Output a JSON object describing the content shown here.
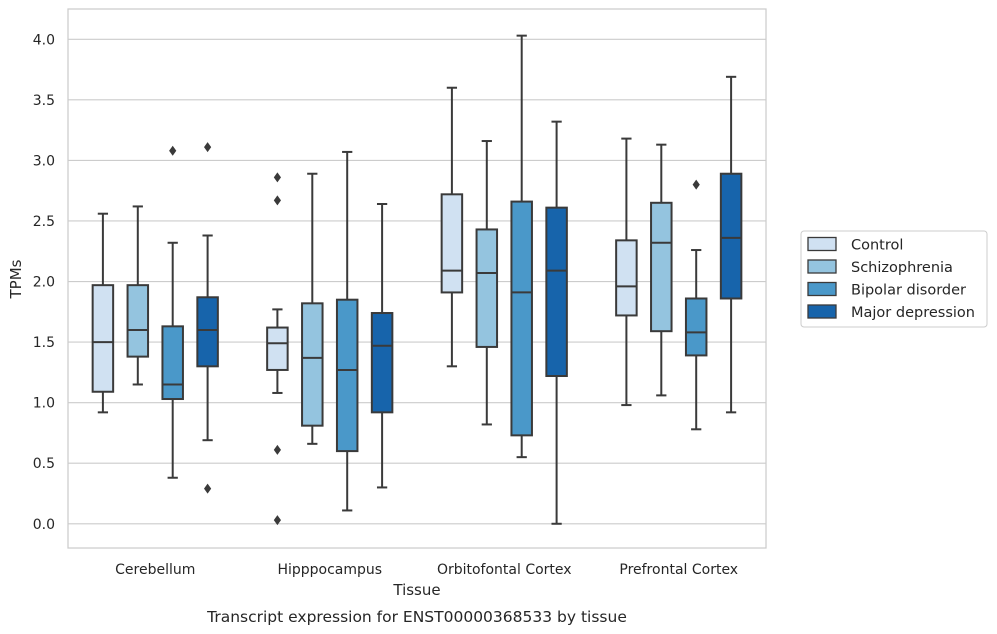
{
  "caption": "Transcript expression for ENST00000368533 by tissue",
  "chart_data": {
    "type": "box",
    "xlabel": "Tissue",
    "ylabel": "TPMs",
    "ylim": [
      -0.2,
      4.25
    ],
    "yticks": [
      "0.0",
      "0.5",
      "1.0",
      "1.5",
      "2.0",
      "2.5",
      "3.0",
      "3.5",
      "4.0"
    ],
    "grid": "horizontal",
    "legend_position": "right",
    "categories": [
      "Cerebellum",
      "Hipppocampus",
      "Orbitofontal Cortex",
      "Prefrontal Cortex"
    ],
    "series": [
      {
        "name": "Control",
        "color": "#d0e1f2",
        "boxes": [
          {
            "whisker_low": 0.92,
            "q1": 1.09,
            "median": 1.5,
            "q3": 1.97,
            "whisker_high": 2.56,
            "outliers": []
          },
          {
            "whisker_low": 1.08,
            "q1": 1.27,
            "median": 1.49,
            "q3": 1.62,
            "whisker_high": 1.77,
            "outliers": [
              2.86,
              2.67,
              0.61,
              0.03
            ]
          },
          {
            "whisker_low": 1.3,
            "q1": 1.91,
            "median": 2.09,
            "q3": 2.72,
            "whisker_high": 3.6,
            "outliers": []
          },
          {
            "whisker_low": 0.98,
            "q1": 1.72,
            "median": 1.96,
            "q3": 2.34,
            "whisker_high": 3.18,
            "outliers": []
          }
        ]
      },
      {
        "name": "Schizophrenia",
        "color": "#94c4df",
        "boxes": [
          {
            "whisker_low": 1.15,
            "q1": 1.38,
            "median": 1.6,
            "q3": 1.97,
            "whisker_high": 2.62,
            "outliers": []
          },
          {
            "whisker_low": 0.66,
            "q1": 0.81,
            "median": 1.37,
            "q3": 1.82,
            "whisker_high": 2.89,
            "outliers": []
          },
          {
            "whisker_low": 0.82,
            "q1": 1.46,
            "median": 2.07,
            "q3": 2.43,
            "whisker_high": 3.16,
            "outliers": []
          },
          {
            "whisker_low": 1.06,
            "q1": 1.59,
            "median": 2.32,
            "q3": 2.65,
            "whisker_high": 3.13,
            "outliers": []
          }
        ]
      },
      {
        "name": "Bipolar disorder",
        "color": "#4a98c9",
        "boxes": [
          {
            "whisker_low": 0.38,
            "q1": 1.03,
            "median": 1.15,
            "q3": 1.63,
            "whisker_high": 2.32,
            "outliers": [
              3.08
            ]
          },
          {
            "whisker_low": 0.11,
            "q1": 0.6,
            "median": 1.27,
            "q3": 1.85,
            "whisker_high": 3.07,
            "outliers": []
          },
          {
            "whisker_low": 0.55,
            "q1": 0.73,
            "median": 1.91,
            "q3": 2.66,
            "whisker_high": 4.03,
            "outliers": []
          },
          {
            "whisker_low": 0.78,
            "q1": 1.39,
            "median": 1.58,
            "q3": 1.86,
            "whisker_high": 2.26,
            "outliers": [
              2.8
            ]
          }
        ]
      },
      {
        "name": "Major depression",
        "color": "#1764ab",
        "boxes": [
          {
            "whisker_low": 0.69,
            "q1": 1.3,
            "median": 1.6,
            "q3": 1.87,
            "whisker_high": 2.38,
            "outliers": [
              3.11,
              0.29
            ]
          },
          {
            "whisker_low": 0.3,
            "q1": 0.92,
            "median": 1.47,
            "q3": 1.74,
            "whisker_high": 2.64,
            "outliers": []
          },
          {
            "whisker_low": 0.0,
            "q1": 1.22,
            "median": 2.09,
            "q3": 2.61,
            "whisker_high": 3.32,
            "outliers": []
          },
          {
            "whisker_low": 0.92,
            "q1": 1.86,
            "median": 2.36,
            "q3": 2.89,
            "whisker_high": 3.69,
            "outliers": []
          }
        ]
      }
    ]
  }
}
